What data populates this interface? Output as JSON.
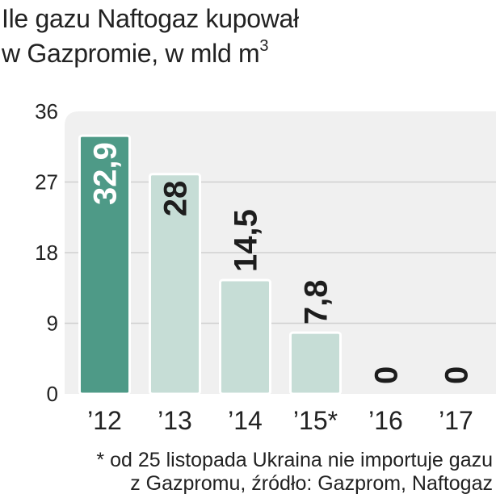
{
  "title_line1": "Ile gazu Naftogaz kupował",
  "title_line2": "w Gazpromie, w mld m",
  "title_sup": "3",
  "footnote_line1": "* od 25 listopada Ukraina nie importuje gazu",
  "footnote_line2": "z Gazpromu, źródło: Gazprom, Naftogaz",
  "colors": {
    "highlight_bar": "#4e9a87",
    "bar": "#c6ddd6",
    "plot_bg": "#f0f0f0",
    "grid": "#cfcfcf",
    "text": "#222222"
  },
  "chart_data": {
    "type": "bar",
    "title": "Ile gazu Naftogaz kupował w Gazpromie, w mld m3",
    "xlabel": "",
    "ylabel": "mld m3",
    "categories": [
      "’12",
      "’13",
      "’14",
      "’15*",
      "’16",
      "’17"
    ],
    "values": [
      32.9,
      28,
      14.5,
      7.8,
      0,
      0
    ],
    "value_labels": [
      "32,9",
      "28",
      "14,5",
      "7,8",
      "0",
      "0"
    ],
    "highlight_index": 0,
    "ylim": [
      0,
      36
    ],
    "yticks": [
      0,
      9,
      18,
      27,
      36
    ],
    "grid": true,
    "legend": "none"
  }
}
